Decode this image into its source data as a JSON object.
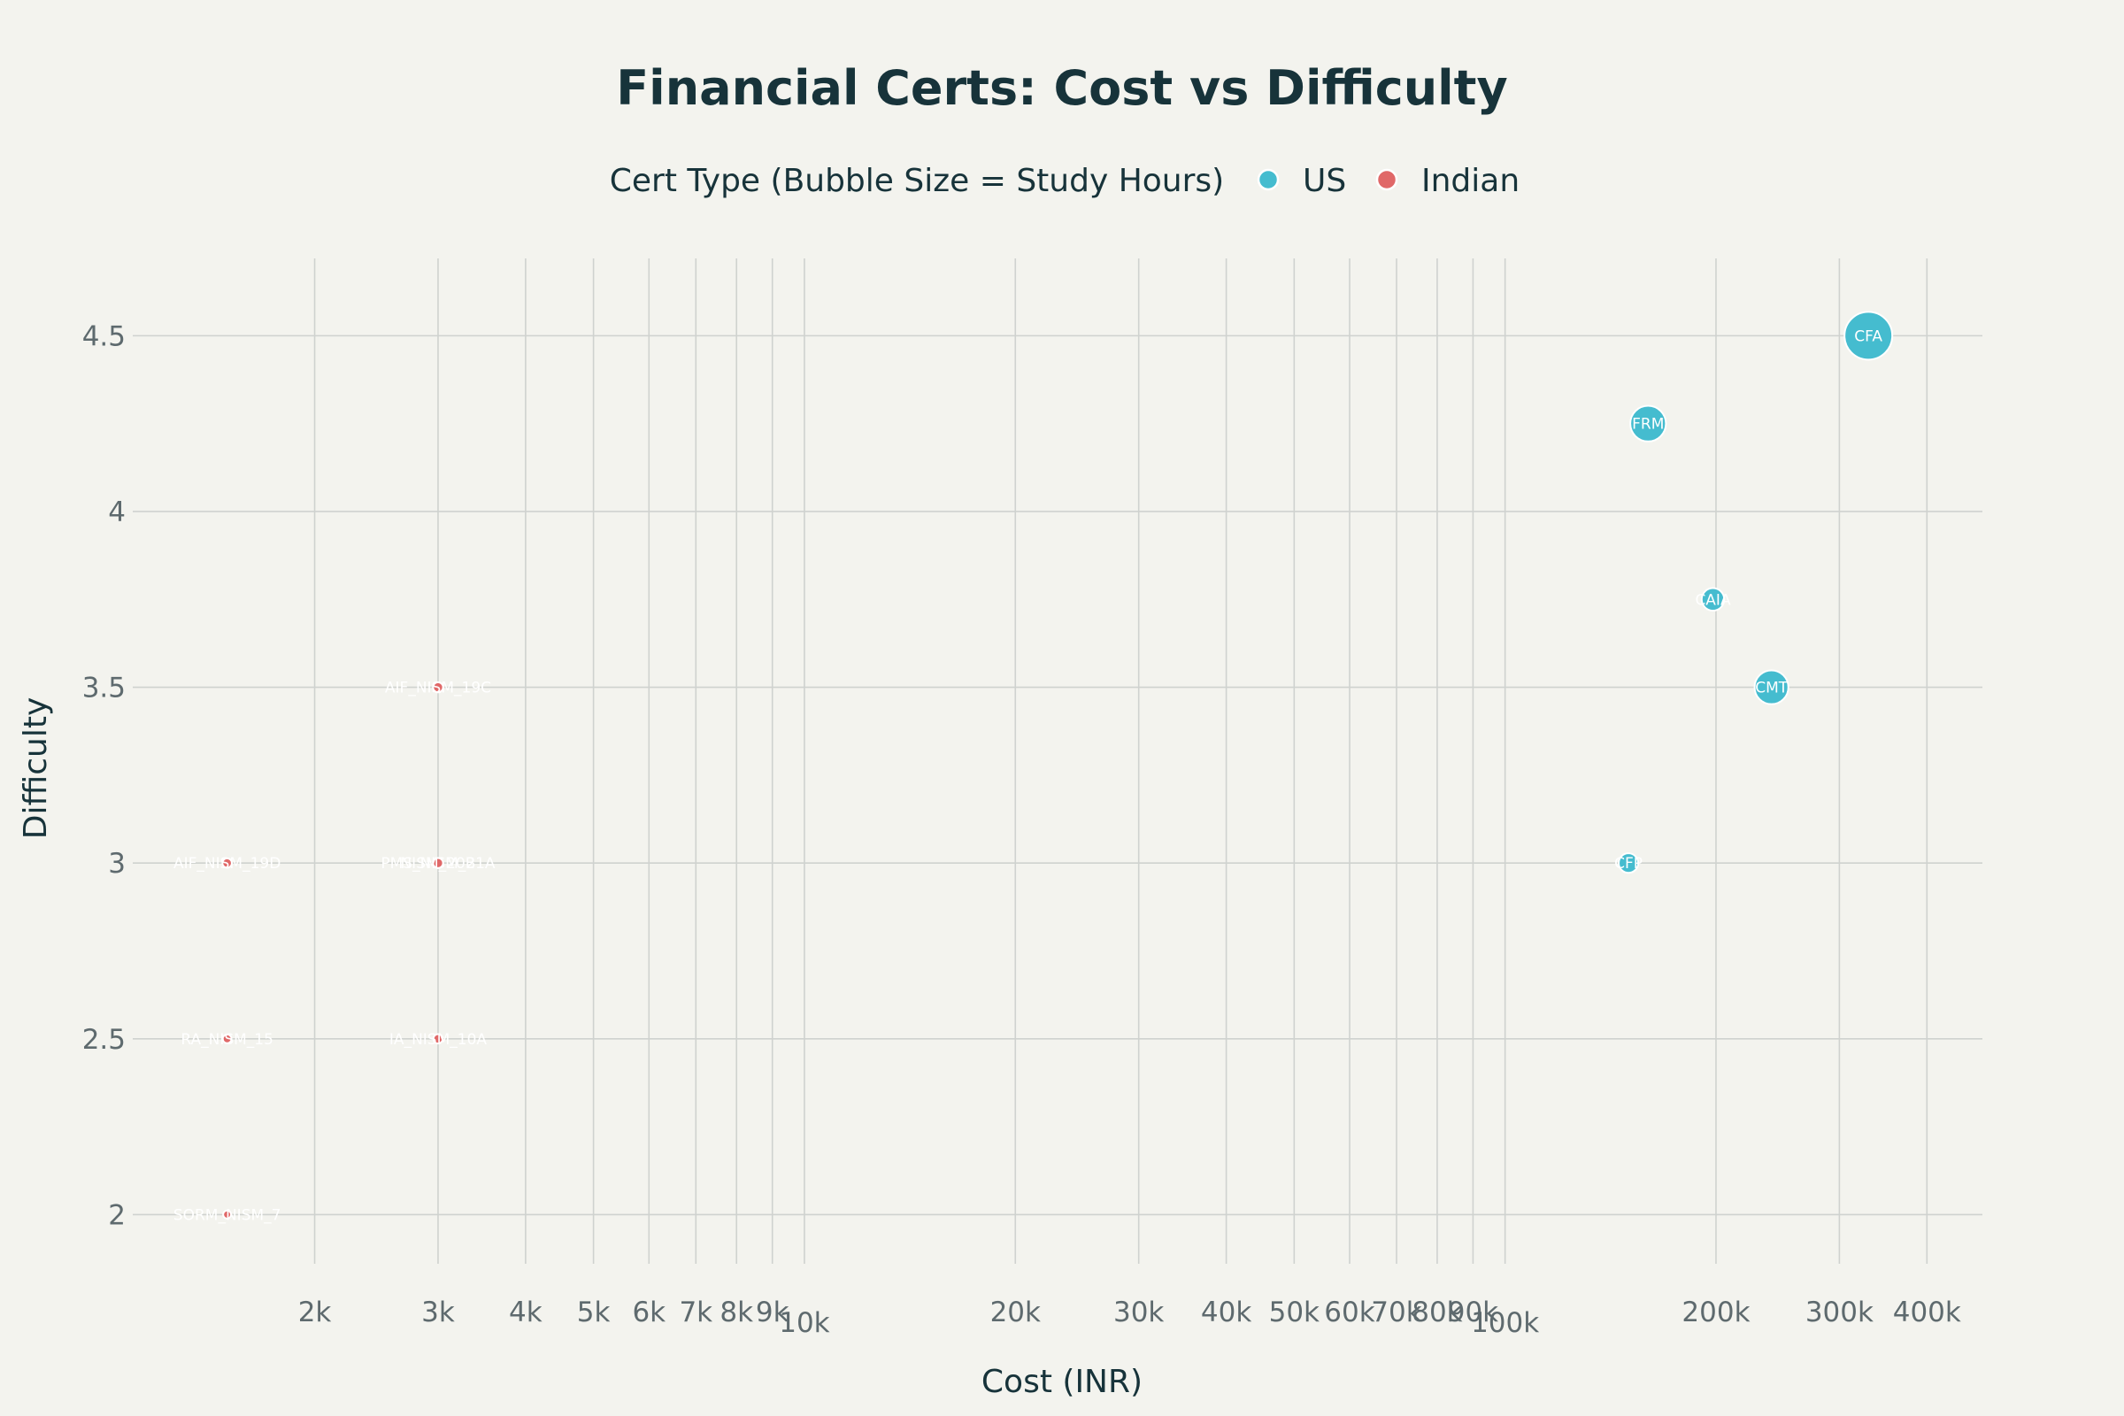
{
  "chart_data": {
    "type": "scatter",
    "title": "Financial Certs: Cost vs Difficulty",
    "xlabel": "Cost (INR)",
    "ylabel": "Difficulty",
    "x_scale": "log",
    "xlim": [
      1100,
      480000
    ],
    "ylim": [
      1.86,
      4.72
    ],
    "x_ticks": [
      {
        "v": 2000,
        "label": "2k"
      },
      {
        "v": 3000,
        "label": "3k"
      },
      {
        "v": 4000,
        "label": "4k"
      },
      {
        "v": 5000,
        "label": "5k"
      },
      {
        "v": 6000,
        "label": "6k"
      },
      {
        "v": 7000,
        "label": "7k"
      },
      {
        "v": 8000,
        "label": "8k"
      },
      {
        "v": 9000,
        "label": "9k"
      },
      {
        "v": 10000,
        "label": "10k",
        "major": true
      },
      {
        "v": 20000,
        "label": "20k"
      },
      {
        "v": 30000,
        "label": "30k"
      },
      {
        "v": 40000,
        "label": "40k"
      },
      {
        "v": 50000,
        "label": "50k"
      },
      {
        "v": 60000,
        "label": "60k"
      },
      {
        "v": 70000,
        "label": "70k"
      },
      {
        "v": 80000,
        "label": "80k"
      },
      {
        "v": 90000,
        "label": "90k"
      },
      {
        "v": 100000,
        "label": "100k",
        "major": true
      },
      {
        "v": 200000,
        "label": "200k"
      },
      {
        "v": 300000,
        "label": "300k"
      },
      {
        "v": 400000,
        "label": "400k"
      }
    ],
    "y_ticks": [
      {
        "v": 2,
        "label": "2"
      },
      {
        "v": 2.5,
        "label": "2.5"
      },
      {
        "v": 3,
        "label": "3"
      },
      {
        "v": 3.5,
        "label": "3.5"
      },
      {
        "v": 4,
        "label": "4"
      },
      {
        "v": 4.5,
        "label": "4.5"
      }
    ],
    "grid": true,
    "legend": {
      "title": "Cert Type (Bubble Size = Study Hours)",
      "placement": "top-center",
      "items": [
        {
          "name": "US",
          "color": "#45bccf"
        },
        {
          "name": "Indian",
          "color": "#e06868"
        }
      ]
    },
    "series": [
      {
        "name": "US",
        "color": "#45bccf",
        "points": [
          {
            "label": "CFA",
            "x": 330000,
            "y": 4.5,
            "study_hours": 900
          },
          {
            "label": "FRM",
            "x": 160000,
            "y": 4.25,
            "study_hours": 500
          },
          {
            "label": "CAIA",
            "x": 198000,
            "y": 3.75,
            "study_hours": 200
          },
          {
            "label": "CMT",
            "x": 240000,
            "y": 3.5,
            "study_hours": 450
          },
          {
            "label": "CFP",
            "x": 150000,
            "y": 3.0,
            "study_hours": 150
          }
        ]
      },
      {
        "name": "Indian",
        "color": "#e06868",
        "points": [
          {
            "label": "AIF_NISM_19C",
            "x": 3000,
            "y": 3.5,
            "study_hours": 40
          },
          {
            "label": "AIF_NISM_19D",
            "x": 1500,
            "y": 3.0,
            "study_hours": 35
          },
          {
            "label": "PMS_NISM_21A",
            "x": 3000,
            "y": 3.0,
            "study_hours": 40
          },
          {
            "label": "NISM_20B",
            "x": 3000,
            "y": 3.0,
            "study_hours": 40
          },
          {
            "label": "RA_NISM_15",
            "x": 1500,
            "y": 2.5,
            "study_hours": 30
          },
          {
            "label": "IA_NISM_10A",
            "x": 3000,
            "y": 2.5,
            "study_hours": 35
          },
          {
            "label": "SORM_NISM_7",
            "x": 1500,
            "y": 2.0,
            "study_hours": 25
          }
        ]
      }
    ]
  }
}
